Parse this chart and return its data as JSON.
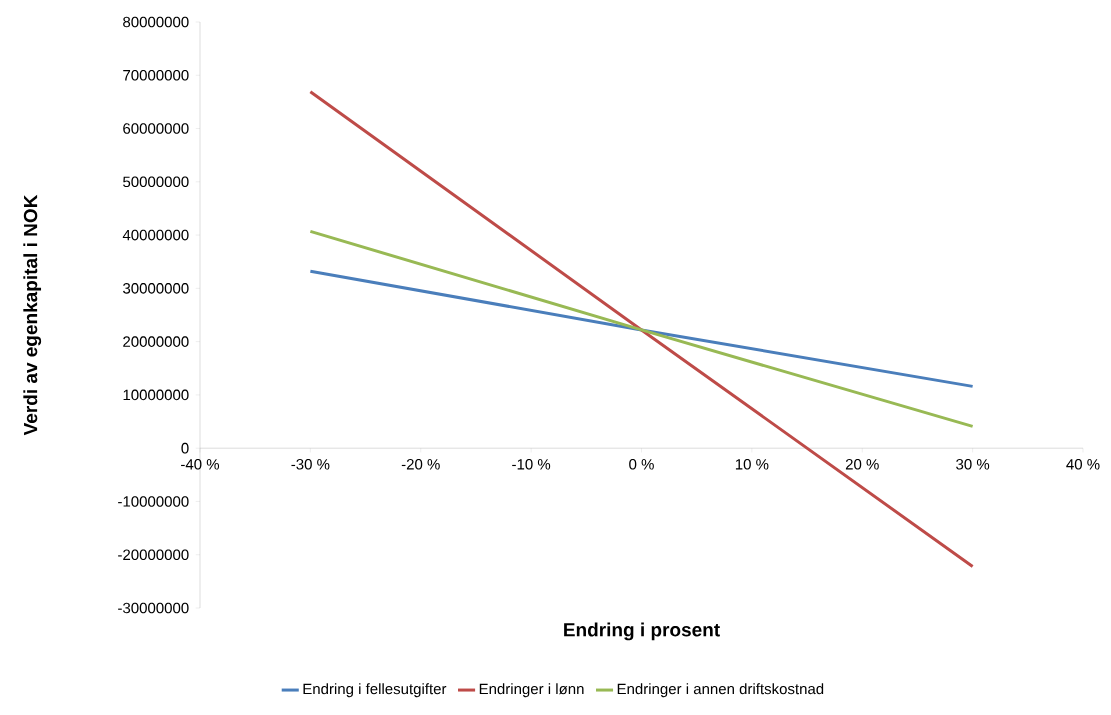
{
  "chart_data": {
    "type": "line",
    "xlabel": "Endring i prosent",
    "ylabel": "Verdi av egenkapital i NOK",
    "x": [
      -30,
      0,
      30
    ],
    "series": [
      {
        "name": "Endring i fellesutgifter",
        "color": "#4a7ebb",
        "values": [
          33200000,
          22200000,
          11600000
        ]
      },
      {
        "name": "Endringer i lønn",
        "color": "#be4b48",
        "values": [
          66900000,
          22200000,
          -22200000
        ]
      },
      {
        "name": "Endringer i annen driftskostnad",
        "color": "#98b954",
        "values": [
          40700000,
          22200000,
          4100000
        ]
      }
    ],
    "xlim": [
      -40,
      40
    ],
    "xticks": [
      {
        "value": -40,
        "label": "-40 %"
      },
      {
        "value": -30,
        "label": "-30 %"
      },
      {
        "value": -20,
        "label": "-20 %"
      },
      {
        "value": -10,
        "label": "-10 %"
      },
      {
        "value": 0,
        "label": "0 %"
      },
      {
        "value": 10,
        "label": "10 %"
      },
      {
        "value": 20,
        "label": "20 %"
      },
      {
        "value": 30,
        "label": "30 %"
      },
      {
        "value": 40,
        "label": "40 %"
      }
    ],
    "ylim": [
      -30000000,
      80000000
    ],
    "yticks": [
      -30000000,
      -20000000,
      -10000000,
      0,
      10000000,
      20000000,
      30000000,
      40000000,
      50000000,
      60000000,
      70000000,
      80000000
    ],
    "grid": false,
    "legend": "bottom",
    "marker": "none",
    "line_style": "solid"
  }
}
